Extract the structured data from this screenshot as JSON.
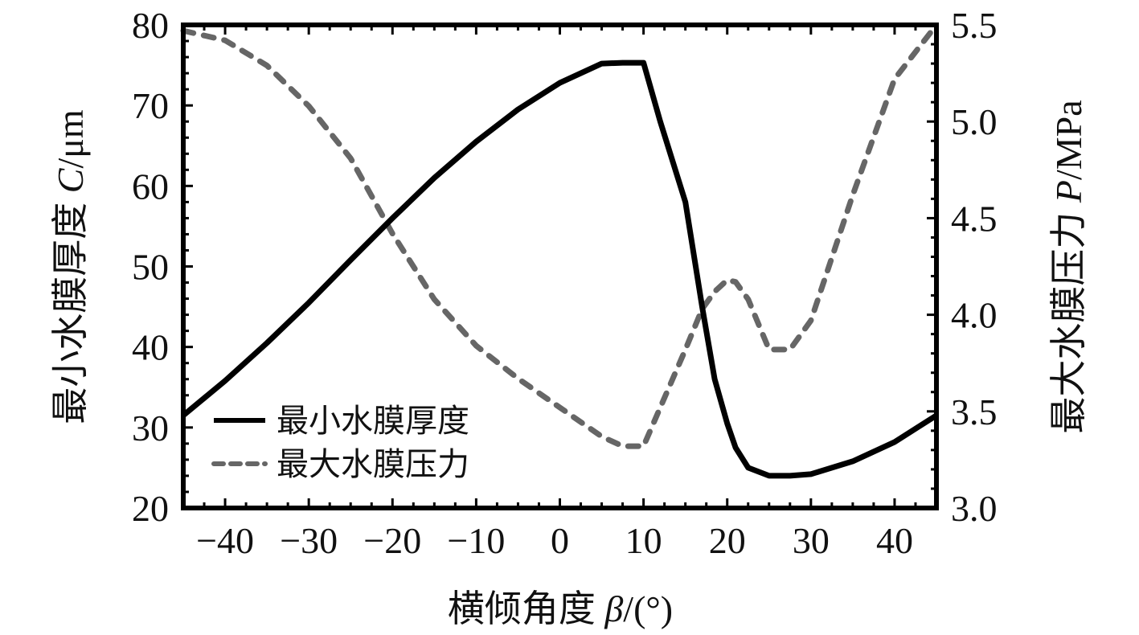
{
  "chart_data": {
    "type": "line",
    "x": [
      -45,
      -40,
      -35,
      -30,
      -25,
      -20,
      -15,
      -10,
      -5,
      0,
      5,
      7.5,
      10,
      12,
      15,
      17,
      18.5,
      20,
      21,
      22.5,
      25,
      27.5,
      30,
      35,
      40,
      45
    ],
    "x_axis": {
      "label_prefix": "横倾角度 ",
      "label_var": "β",
      "label_suffix": "/(°)",
      "range": [
        -45,
        45
      ],
      "ticks": [
        -40,
        -30,
        -20,
        -10,
        0,
        10,
        20,
        30,
        40
      ],
      "tick_labels": [
        "−40",
        "−30",
        "−20",
        "−10",
        "0",
        "10",
        "20",
        "30",
        "40"
      ]
    },
    "y_left": {
      "label_prefix": "最小水膜厚度 ",
      "label_var": "C",
      "label_suffix": "/μm",
      "range": [
        20,
        80
      ],
      "ticks": [
        20,
        30,
        40,
        50,
        60,
        70,
        80
      ],
      "tick_labels": [
        "20",
        "30",
        "40",
        "50",
        "60",
        "70",
        "80"
      ]
    },
    "y_right": {
      "label_prefix": "最大水膜压力 ",
      "label_var": "P",
      "label_suffix": "/MPa",
      "range": [
        3.0,
        5.5
      ],
      "ticks": [
        3.0,
        3.5,
        4.0,
        4.5,
        5.0,
        5.5
      ],
      "tick_labels": [
        "3.0",
        "3.5",
        "4.0",
        "4.5",
        "5.0",
        "5.5"
      ]
    },
    "series": [
      {
        "name": "最小水膜厚度",
        "axis": "left",
        "style": "solid",
        "color": "#000000",
        "values": [
          31.5,
          35.8,
          40.5,
          45.5,
          50.8,
          56.0,
          61.0,
          65.5,
          69.5,
          72.8,
          75.2,
          75.3,
          75.3,
          68.0,
          58.0,
          45.0,
          36.0,
          30.5,
          27.5,
          25.0,
          24.0,
          24.0,
          24.2,
          25.8,
          28.2,
          31.5
        ]
      },
      {
        "name": "最大水膜压力",
        "axis": "right",
        "style": "dashed",
        "color": "#666666",
        "values": [
          5.47,
          5.42,
          5.29,
          5.08,
          4.81,
          4.42,
          4.08,
          3.84,
          3.67,
          3.52,
          3.37,
          3.32,
          3.32,
          3.52,
          3.82,
          4.03,
          4.12,
          4.18,
          4.17,
          4.08,
          3.82,
          3.82,
          3.97,
          4.62,
          5.22,
          5.5
        ]
      }
    ],
    "legend": {
      "position": "bottom-left",
      "entries": [
        "最小水膜厚度",
        "最大水膜压力"
      ]
    },
    "grid": false
  }
}
